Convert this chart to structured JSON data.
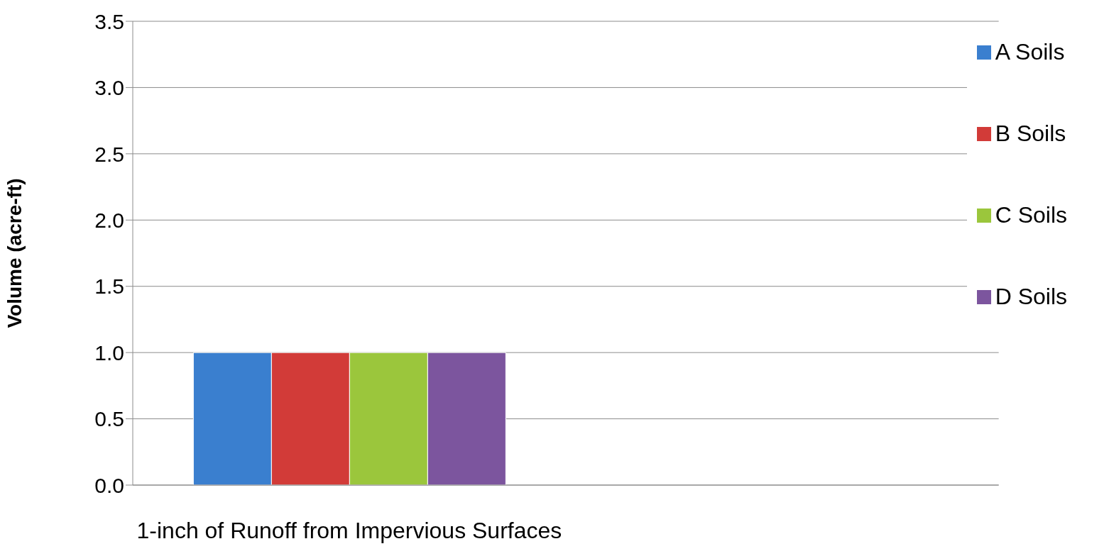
{
  "chart_data": {
    "type": "bar",
    "ylabel": "Volume (acre-ft)",
    "categories": [
      "1-inch of Runoff from Impervious Surfaces",
      null
    ],
    "series": [
      {
        "name": "A Soils",
        "color": "#3a7fcf",
        "values": [
          1.0,
          null
        ]
      },
      {
        "name": "B Soils",
        "color": "#d23b38",
        "values": [
          1.0,
          null
        ]
      },
      {
        "name": "C Soils",
        "color": "#9bc63c",
        "values": [
          1.0,
          null
        ]
      },
      {
        "name": "D Soils",
        "color": "#7c559e",
        "values": [
          1.0,
          null
        ]
      }
    ],
    "ylim": [
      0,
      3.5
    ],
    "yticks": [
      {
        "value": 0,
        "label": "0.0"
      },
      {
        "value": 0.5,
        "label": "0.5"
      },
      {
        "value": 1,
        "label": "1.0"
      },
      {
        "value": 1.5,
        "label": "1.5"
      },
      {
        "value": 2,
        "label": "2.0"
      },
      {
        "value": 2.5,
        "label": "2.5"
      },
      {
        "value": 3,
        "label": "3.0"
      },
      {
        "value": 3.5,
        "label": "3.5"
      }
    ],
    "grid": "y",
    "legend": "top right"
  }
}
